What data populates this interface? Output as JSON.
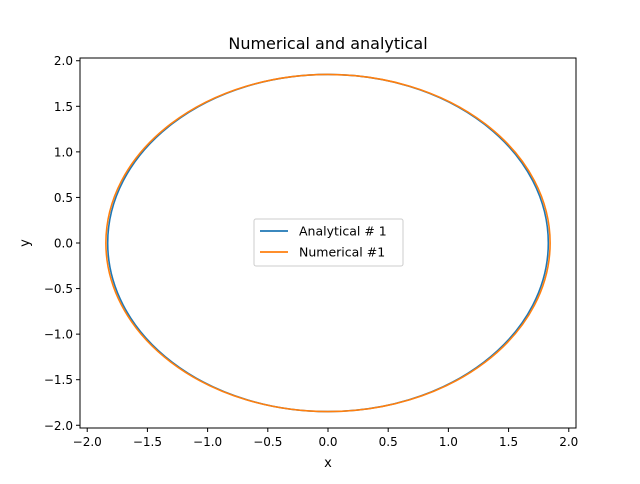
{
  "chart_data": {
    "type": "line",
    "title": "Numerical and analytical",
    "xlabel": "x",
    "ylabel": "y",
    "xlim": [
      -2.06,
      2.06
    ],
    "ylim": [
      -2.03,
      2.03
    ],
    "xticks": [
      -2.0,
      -1.5,
      -1.0,
      -0.5,
      0.0,
      0.5,
      1.0,
      1.5,
      2.0
    ],
    "yticks": [
      -2.0,
      -1.5,
      -1.0,
      -0.5,
      0.0,
      0.5,
      1.0,
      1.5,
      2.0
    ],
    "xtick_labels": [
      "−2.0",
      "−1.5",
      "−1.0",
      "−0.5",
      "0.0",
      "0.5",
      "1.0",
      "1.5",
      "2.0"
    ],
    "ytick_labels": [
      "−2.0",
      "−1.5",
      "−1.0",
      "−0.5",
      "0.0",
      "0.5",
      "1.0",
      "1.5",
      "2.0"
    ],
    "grid": false,
    "legend_position": "center",
    "series": [
      {
        "name": "Analytical # 1",
        "color": "#1f77b4",
        "shape": "circle",
        "center": [
          0.0,
          0.0
        ],
        "radius_x": 1.83,
        "radius_y": 1.85
      },
      {
        "name": "Numerical #1",
        "color": "#ff7f0e",
        "shape": "circle",
        "center": [
          0.0,
          0.0
        ],
        "radius_x": 1.845,
        "radius_y": 1.85
      }
    ]
  }
}
